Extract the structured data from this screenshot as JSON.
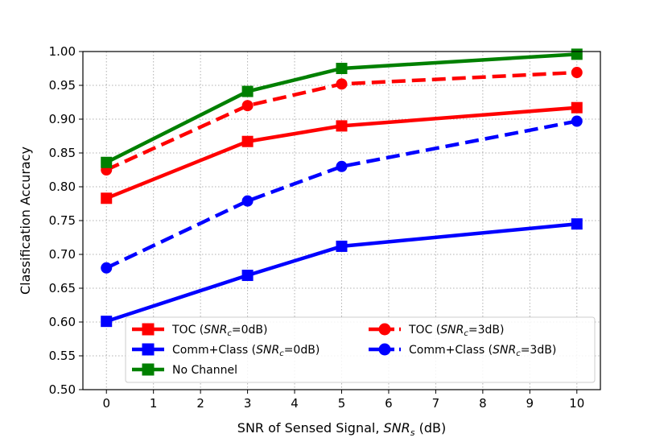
{
  "chart_data": {
    "type": "line",
    "title": "",
    "xlabel": "SNR of Sensed Signal, SNR_s (dB)",
    "xlabel_parts": [
      "SNR of Sensed Signal, ",
      "SNR",
      "s",
      " (dB)"
    ],
    "ylabel": "Classification Accuracy",
    "xlim": [
      -0.5,
      10.5
    ],
    "ylim": [
      0.5,
      1.0
    ],
    "xticks": [
      0,
      1,
      2,
      3,
      4,
      5,
      6,
      7,
      8,
      9,
      10
    ],
    "yticks": [
      0.5,
      0.55,
      0.6,
      0.65,
      0.7,
      0.75,
      0.8,
      0.85,
      0.9,
      0.95,
      1.0
    ],
    "ytick_labels": [
      "0.50",
      "0.55",
      "0.60",
      "0.65",
      "0.70",
      "0.75",
      "0.80",
      "0.85",
      "0.90",
      "0.95",
      "1.00"
    ],
    "grid": true,
    "legend_position": "lower-right",
    "x": [
      0,
      3,
      5,
      10
    ],
    "series": [
      {
        "name": "TOC (SNR_c=0dB)",
        "legend_prefix": "TOC (",
        "legend_var": "SNR",
        "legend_sub": "c",
        "legend_suffix": "=0dB)",
        "color": "#ff0000",
        "marker": "square",
        "linestyle": "solid",
        "values": [
          0.783,
          0.867,
          0.89,
          0.917
        ]
      },
      {
        "name": "Comm+Class (SNR_c=0dB)",
        "legend_prefix": "Comm+Class (",
        "legend_var": "SNR",
        "legend_sub": "c",
        "legend_suffix": "=0dB)",
        "color": "#0000ff",
        "marker": "square",
        "linestyle": "solid",
        "values": [
          0.601,
          0.669,
          0.712,
          0.745
        ]
      },
      {
        "name": "No Channel",
        "legend_prefix": "No Channel",
        "legend_var": "",
        "legend_sub": "",
        "legend_suffix": "",
        "color": "#008000",
        "marker": "square",
        "linestyle": "solid",
        "values": [
          0.836,
          0.941,
          0.975,
          0.996
        ]
      },
      {
        "name": "TOC (SNR_c=3dB)",
        "legend_prefix": "TOC (",
        "legend_var": "SNR",
        "legend_sub": "c",
        "legend_suffix": "=3dB)",
        "color": "#ff0000",
        "marker": "circle",
        "linestyle": "dashed",
        "values": [
          0.825,
          0.92,
          0.952,
          0.969
        ]
      },
      {
        "name": "Comm+Class (SNR_c=3dB)",
        "legend_prefix": "Comm+Class (",
        "legend_var": "SNR",
        "legend_sub": "c",
        "legend_suffix": "=3dB)",
        "color": "#0000ff",
        "marker": "circle",
        "linestyle": "dashed",
        "values": [
          0.68,
          0.779,
          0.83,
          0.897
        ]
      }
    ]
  }
}
